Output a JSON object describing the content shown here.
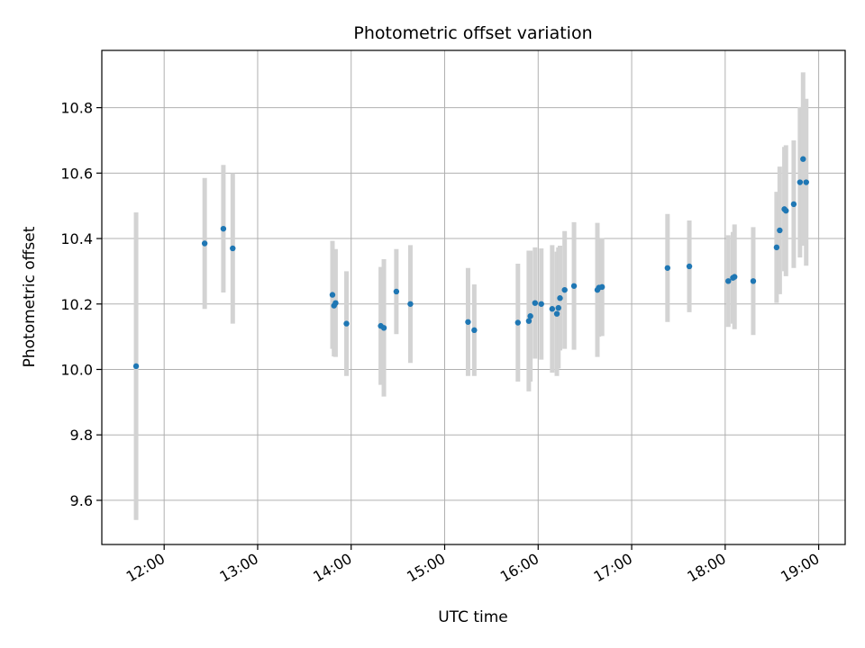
{
  "chart_data": {
    "type": "scatter",
    "title": "Photometric offset variation",
    "xlabel": "UTC time",
    "ylabel": "Photometric offset",
    "x_ticks": [
      "12:00",
      "13:00",
      "14:00",
      "15:00",
      "16:00",
      "17:00",
      "18:00",
      "19:00"
    ],
    "y_ticks": [
      "9.6",
      "9.8",
      "10.0",
      "10.2",
      "10.4",
      "10.6",
      "10.8"
    ],
    "xlim": [
      "11:20",
      "19:17"
    ],
    "ylim": [
      9.465,
      10.975
    ],
    "grid": true,
    "colors": {
      "points": "#1f77b4",
      "errorbars": "#d3d3d3",
      "grid": "#b0b0b0"
    },
    "series": [
      {
        "x": [
          "11:42",
          "12:26",
          "12:38",
          "12:44",
          "13:48",
          "13:49",
          "13:50",
          "13:57",
          "14:19",
          "14:21",
          "14:29",
          "14:38",
          "15:15",
          "15:19",
          "15:47",
          "15:54",
          "15:55",
          "15:58",
          "16:02",
          "16:09",
          "16:12",
          "16:13",
          "16:14",
          "16:17",
          "16:23",
          "16:38",
          "16:39",
          "16:41",
          "17:23",
          "17:37",
          "18:02",
          "18:05",
          "18:06",
          "18:18",
          "18:33",
          "18:35",
          "18:38",
          "18:39",
          "18:44",
          "18:48",
          "18:50",
          "18:52"
        ],
        "y": [
          10.01,
          10.385,
          10.43,
          10.37,
          10.228,
          10.195,
          10.203,
          10.14,
          10.133,
          10.127,
          10.238,
          10.2,
          10.145,
          10.12,
          10.143,
          10.148,
          10.163,
          10.203,
          10.2,
          10.185,
          10.17,
          10.188,
          10.218,
          10.243,
          10.255,
          10.243,
          10.25,
          10.252,
          10.31,
          10.315,
          10.27,
          10.28,
          10.283,
          10.27,
          10.373,
          10.425,
          10.49,
          10.485,
          10.505,
          10.572,
          10.643,
          10.572
        ],
        "yerr": [
          0.47,
          0.2,
          0.195,
          0.23,
          0.165,
          0.155,
          0.165,
          0.16,
          0.18,
          0.21,
          0.13,
          0.18,
          0.165,
          0.14,
          0.18,
          0.215,
          0.2,
          0.17,
          0.17,
          0.195,
          0.19,
          0.185,
          0.16,
          0.18,
          0.195,
          0.205,
          0.15,
          0.15,
          0.165,
          0.14,
          0.14,
          0.14,
          0.16,
          0.165,
          0.17,
          0.195,
          0.19,
          0.2,
          0.195,
          0.23,
          0.265,
          0.255
        ]
      }
    ]
  }
}
